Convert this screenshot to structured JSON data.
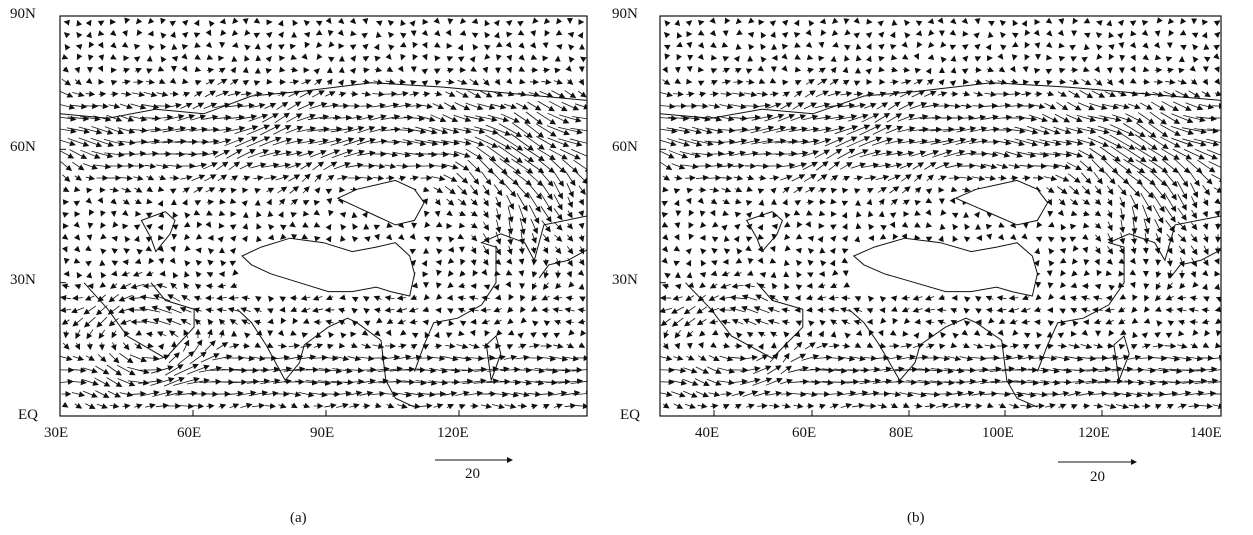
{
  "panels": [
    {
      "caption": "(a)",
      "y_ticks": [
        "90N",
        "60N",
        "30N",
        "EQ"
      ],
      "x_ticks": [
        "30E",
        "60E",
        "90E",
        "120E"
      ],
      "reference_vector": "20",
      "extent": {
        "lon": [
          30,
          140
        ],
        "lat": [
          0,
          90
        ]
      }
    },
    {
      "caption": "(b)",
      "y_ticks": [
        "90N",
        "60N",
        "30N",
        "EQ"
      ],
      "x_ticks": [
        "40E",
        "60E",
        "80E",
        "100E",
        "120E",
        "140E"
      ],
      "reference_vector": "20",
      "extent": {
        "lon": [
          30,
          140
        ],
        "lat": [
          0,
          90
        ]
      }
    }
  ],
  "colors": {
    "ink": "#111111",
    "plateau_fill": "#ffffff"
  }
}
